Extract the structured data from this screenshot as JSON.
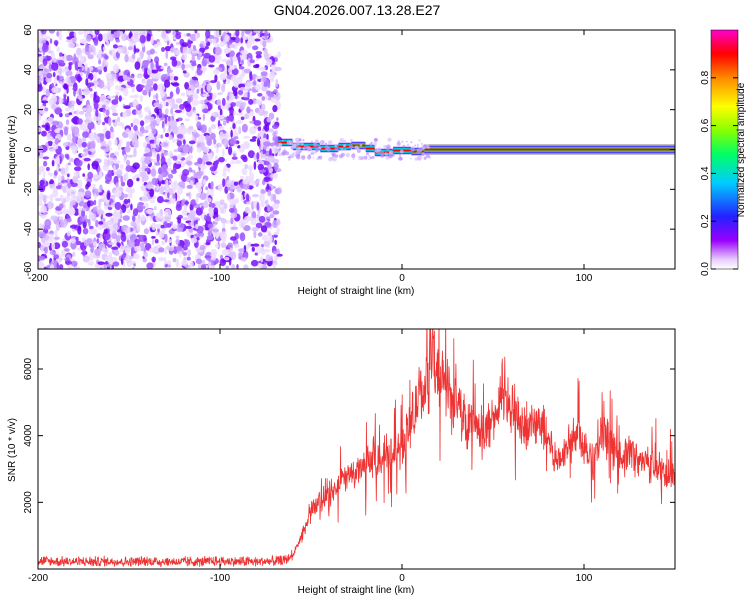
{
  "title": "GN04.2026.007.13.28.E27",
  "chart_data": [
    {
      "type": "heatmap",
      "name": "spectrogram",
      "xlabel": "Height of straight line (km)",
      "ylabel": "Frequency (Hz)",
      "xlim": [
        -200,
        150
      ],
      "ylim": [
        -60,
        60
      ],
      "xticks": [
        -200,
        -100,
        0,
        100
      ],
      "yticks": [
        -60,
        -40,
        -20,
        0,
        20,
        40,
        60
      ],
      "noise_region_x": [
        -200,
        -68
      ],
      "carrier_segments": [
        {
          "x0": -68,
          "x1": -60,
          "f": 3.5
        },
        {
          "x0": -60,
          "x1": -45,
          "f": 1.5
        },
        {
          "x0": -45,
          "x1": -35,
          "f": 0.5
        },
        {
          "x0": -35,
          "x1": -28,
          "f": 1.5
        },
        {
          "x0": -28,
          "x1": -20,
          "f": 2.0
        },
        {
          "x0": -20,
          "x1": -15,
          "f": 0.5
        },
        {
          "x0": -15,
          "x1": -5,
          "f": -1.5
        },
        {
          "x0": -5,
          "x1": 5,
          "f": -0.5
        },
        {
          "x0": 5,
          "x1": 12,
          "f": -1.0
        },
        {
          "x0": 12,
          "x1": 150,
          "f": 0.0
        }
      ],
      "colorbar": {
        "label": "Normalized spectral amplitude",
        "ticks": [
          0.0,
          0.2,
          0.4,
          0.6,
          0.8
        ],
        "tick_labels": [
          "0.0",
          "0.2",
          "0.4",
          "0.6",
          "0.8"
        ],
        "range": [
          0,
          1
        ]
      }
    },
    {
      "type": "line",
      "name": "snr",
      "xlabel": "Height of straight line (km)",
      "ylabel": "SNR (10 * v/v)",
      "xlim": [
        -200,
        150
      ],
      "ylim": [
        0,
        7200
      ],
      "xticks": [
        -200,
        -100,
        0,
        100
      ],
      "yticks": [
        2000,
        4000,
        6000
      ],
      "color": "#ee3333",
      "x": [
        -200,
        -190,
        -180,
        -170,
        -160,
        -150,
        -140,
        -130,
        -120,
        -110,
        -100,
        -90,
        -80,
        -70,
        -65,
        -60,
        -55,
        -50,
        -45,
        -40,
        -35,
        -30,
        -25,
        -20,
        -15,
        -10,
        -5,
        0,
        5,
        10,
        15,
        18,
        20,
        25,
        30,
        35,
        40,
        45,
        50,
        55,
        60,
        65,
        70,
        75,
        80,
        85,
        90,
        95,
        100,
        105,
        110,
        115,
        120,
        125,
        130,
        135,
        140,
        145,
        150
      ],
      "y": [
        250,
        220,
        220,
        220,
        230,
        220,
        230,
        220,
        210,
        220,
        230,
        220,
        220,
        230,
        250,
        400,
        1000,
        1700,
        2000,
        2200,
        2500,
        2800,
        2900,
        3100,
        3300,
        3400,
        3500,
        3700,
        4400,
        5200,
        5700,
        5800,
        5700,
        5500,
        4900,
        4500,
        4300,
        4100,
        4400,
        5200,
        4800,
        4400,
        4300,
        4400,
        4000,
        3200,
        3600,
        4200,
        3800,
        3300,
        4000,
        3600,
        3300,
        3500,
        3200,
        3300,
        3000,
        2900,
        2800
      ]
    }
  ]
}
